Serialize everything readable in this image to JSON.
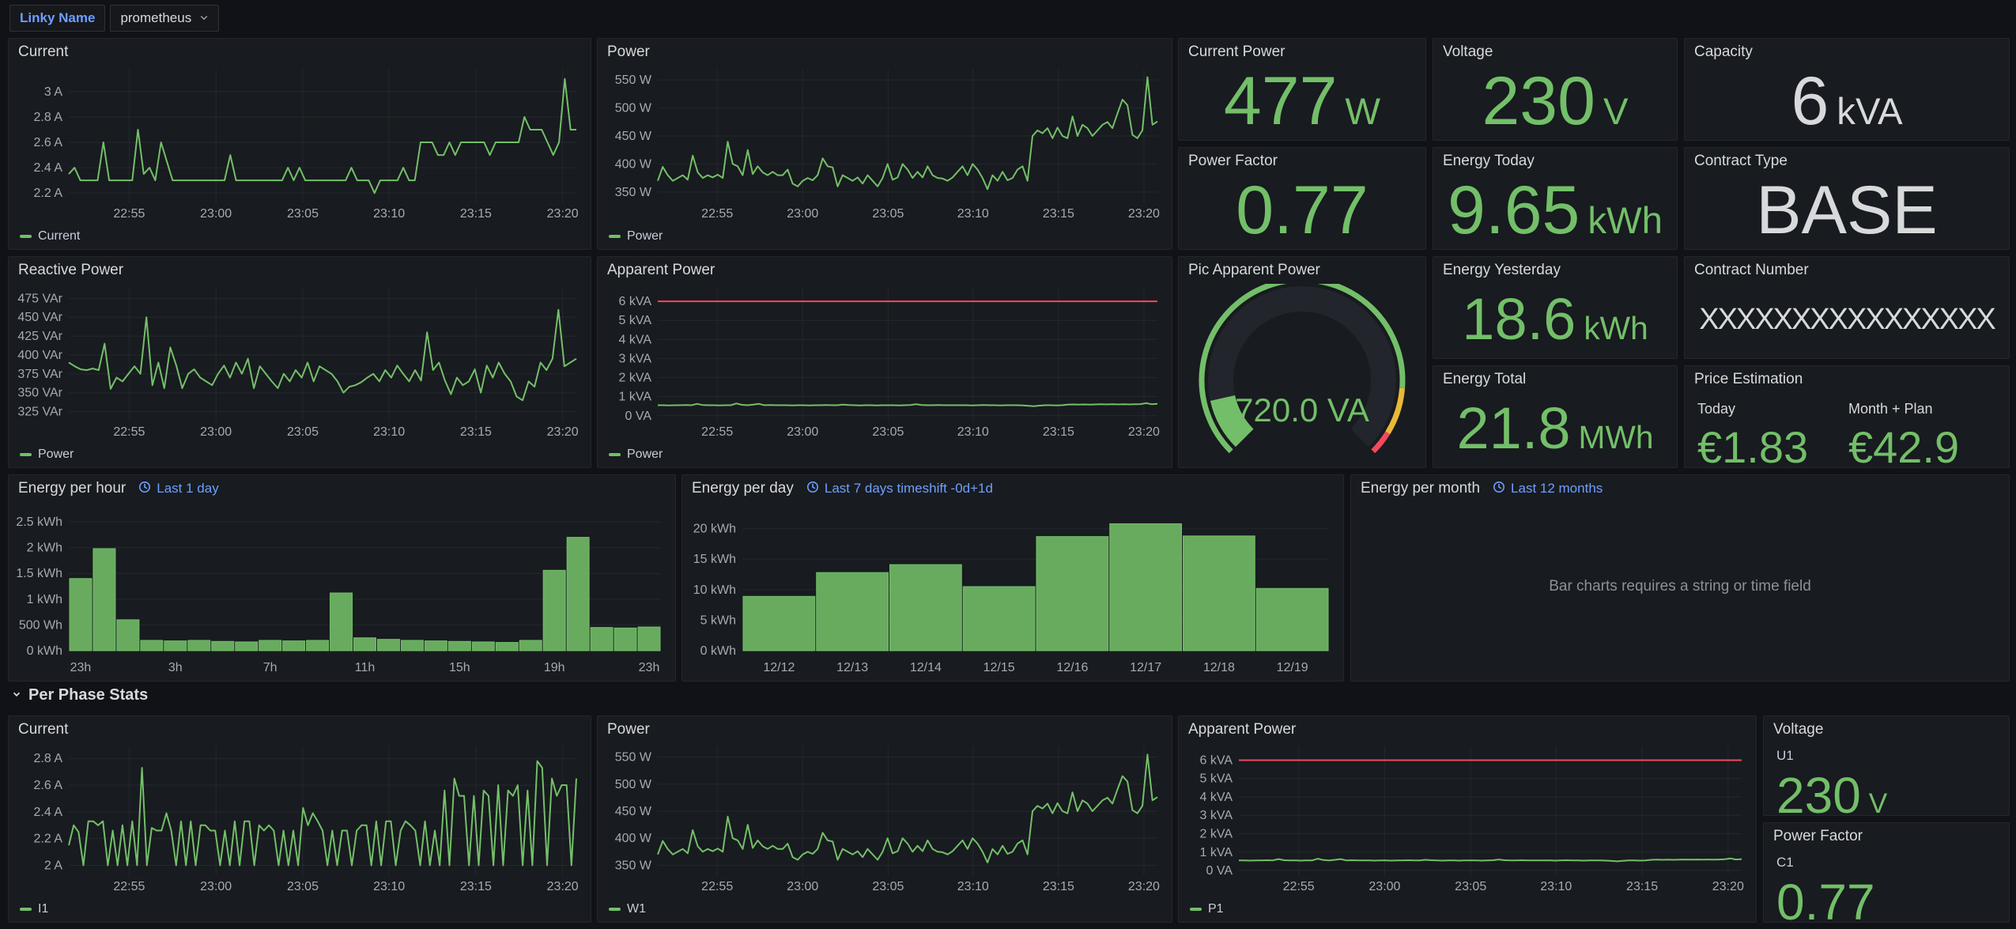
{
  "header": {
    "variable_label": "Linky Name",
    "variable_value": "prometheus"
  },
  "section": {
    "per_phase_title": "Per Phase Stats"
  },
  "messages": {
    "bar_chart_error": "Bar charts requires a string or time field"
  },
  "colors": {
    "green": "#73BF69",
    "red": "#F2495C",
    "yellow": "#EAB839",
    "link_blue": "#6E9FFF",
    "white_stat": "#D8D9DA"
  },
  "stats": {
    "current_power": {
      "title": "Current Power",
      "value": "477",
      "unit": "W"
    },
    "voltage": {
      "title": "Voltage",
      "value": "230",
      "unit": "V"
    },
    "capacity": {
      "title": "Capacity",
      "value": "6",
      "unit": "kVA"
    },
    "power_factor": {
      "title": "Power Factor",
      "value": "0.77"
    },
    "energy_today": {
      "title": "Energy Today",
      "value": "9.65",
      "unit": "kWh"
    },
    "contract_type": {
      "title": "Contract Type",
      "value": "BASE"
    },
    "energy_yesterday": {
      "title": "Energy Yesterday",
      "value": "18.6",
      "unit": "kWh"
    },
    "contract_number": {
      "title": "Contract Number",
      "value": "XXXXXXXXXXXXXXXX"
    },
    "energy_total": {
      "title": "Energy Total",
      "value": "21.8",
      "unit": "MWh"
    },
    "price": {
      "title": "Price Estimation",
      "today_label": "Today",
      "today_value": "€1.83",
      "month_label": "Month + Plan",
      "month_value": "€42.9"
    },
    "voltage_u1": {
      "title": "Voltage",
      "series": "U1",
      "value": "230",
      "unit": "V"
    },
    "power_factor_c1": {
      "title": "Power Factor",
      "series": "C1",
      "value": "0.77"
    }
  },
  "gauge": {
    "title": "Pic Apparent Power",
    "value_label": "720.0 VA",
    "fraction": 0.12,
    "thresholds": [
      {
        "color": "#73BF69",
        "upto": 0.85
      },
      {
        "color": "#EAB839",
        "upto": 0.95
      },
      {
        "color": "#F2495C",
        "upto": 1.0
      }
    ]
  },
  "charts": {
    "current_top": {
      "type": "line",
      "title": "Current",
      "legend": "Current",
      "color": "#73BF69",
      "ymin": 2.12,
      "ymax": 3.18,
      "yticks": [
        {
          "v": 2.2,
          "label": "2.2 A"
        },
        {
          "v": 2.4,
          "label": "2.4 A"
        },
        {
          "v": 2.6,
          "label": "2.6 A"
        },
        {
          "v": 2.8,
          "label": "2.8 A"
        },
        {
          "v": 3.0,
          "label": "3 A"
        }
      ],
      "xticks": [
        {
          "pos": 0.119,
          "label": "22:55"
        },
        {
          "pos": 0.29,
          "label": "23:00"
        },
        {
          "pos": 0.461,
          "label": "23:05"
        },
        {
          "pos": 0.631,
          "label": "23:10"
        },
        {
          "pos": 0.802,
          "label": "23:15"
        },
        {
          "pos": 0.973,
          "label": "23:20"
        }
      ],
      "values": [
        2.35,
        2.4,
        2.3,
        2.3,
        2.3,
        2.3,
        2.6,
        2.3,
        2.3,
        2.3,
        2.3,
        2.3,
        2.7,
        2.35,
        2.4,
        2.3,
        2.6,
        2.45,
        2.3,
        2.3,
        2.3,
        2.3,
        2.3,
        2.3,
        2.3,
        2.3,
        2.3,
        2.3,
        2.5,
        2.3,
        2.3,
        2.3,
        2.3,
        2.3,
        2.3,
        2.3,
        2.3,
        2.3,
        2.4,
        2.3,
        2.4,
        2.3,
        2.3,
        2.3,
        2.3,
        2.3,
        2.3,
        2.3,
        2.3,
        2.4,
        2.3,
        2.3,
        2.3,
        2.2,
        2.3,
        2.3,
        2.3,
        2.3,
        2.4,
        2.3,
        2.3,
        2.6,
        2.6,
        2.6,
        2.5,
        2.5,
        2.6,
        2.5,
        2.6,
        2.6,
        2.6,
        2.6,
        2.6,
        2.5,
        2.6,
        2.6,
        2.6,
        2.6,
        2.6,
        2.8,
        2.7,
        2.7,
        2.7,
        2.6,
        2.5,
        2.6,
        3.1,
        2.7,
        2.7
      ]
    },
    "power_top": {
      "type": "line",
      "title": "Power",
      "legend": "Power",
      "color": "#73BF69",
      "ymin": 330,
      "ymax": 570,
      "yticks": [
        {
          "v": 350,
          "label": "350 W"
        },
        {
          "v": 400,
          "label": "400 W"
        },
        {
          "v": 450,
          "label": "450 W"
        },
        {
          "v": 500,
          "label": "500 W"
        },
        {
          "v": 550,
          "label": "550 W"
        }
      ],
      "xticks": [
        {
          "pos": 0.119,
          "label": "22:55"
        },
        {
          "pos": 0.29,
          "label": "23:00"
        },
        {
          "pos": 0.461,
          "label": "23:05"
        },
        {
          "pos": 0.631,
          "label": "23:10"
        },
        {
          "pos": 0.802,
          "label": "23:15"
        },
        {
          "pos": 0.973,
          "label": "23:20"
        }
      ],
      "values": [
        370,
        395,
        380,
        370,
        375,
        380,
        372,
        415,
        385,
        375,
        380,
        376,
        381,
        375,
        440,
        400,
        396,
        380,
        425,
        382,
        396,
        385,
        380,
        386,
        380,
        380,
        390,
        365,
        360,
        370,
        375,
        371,
        380,
        410,
        396,
        394,
        360,
        380,
        375,
        370,
        376,
        365,
        380,
        370,
        360,
        375,
        400,
        372,
        376,
        400,
        390,
        375,
        386,
        376,
        396,
        380,
        375,
        374,
        370,
        376,
        386,
        396,
        380,
        400,
        390,
        375,
        355,
        380,
        370,
        386,
        371,
        375,
        390,
        396,
        370,
        450,
        460,
        455,
        464,
        446,
        465,
        450,
        446,
        485,
        450,
        470,
        464,
        450,
        460,
        470,
        475,
        464,
        490,
        515,
        505,
        452,
        446,
        460,
        555,
        470,
        476
      ]
    },
    "reactive": {
      "type": "line",
      "title": "Reactive Power",
      "legend": "Power",
      "color": "#73BF69",
      "ymin": 312,
      "ymax": 490,
      "yticks": [
        {
          "v": 325,
          "label": "325 VAr"
        },
        {
          "v": 350,
          "label": "350 VAr"
        },
        {
          "v": 375,
          "label": "375 VAr"
        },
        {
          "v": 400,
          "label": "400 VAr"
        },
        {
          "v": 425,
          "label": "425 VAr"
        },
        {
          "v": 450,
          "label": "450 VAr"
        },
        {
          "v": 475,
          "label": "475 VAr"
        }
      ],
      "xticks": [
        {
          "pos": 0.119,
          "label": "22:55"
        },
        {
          "pos": 0.29,
          "label": "23:00"
        },
        {
          "pos": 0.461,
          "label": "23:05"
        },
        {
          "pos": 0.631,
          "label": "23:10"
        },
        {
          "pos": 0.802,
          "label": "23:15"
        },
        {
          "pos": 0.973,
          "label": "23:20"
        }
      ],
      "values": [
        390,
        385,
        381,
        380,
        382,
        380,
        415,
        355,
        370,
        365,
        375,
        385,
        375,
        450,
        360,
        390,
        356,
        410,
        386,
        356,
        375,
        381,
        370,
        365,
        360,
        375,
        386,
        370,
        390,
        375,
        395,
        356,
        385,
        375,
        365,
        356,
        375,
        365,
        380,
        370,
        390,
        365,
        385,
        380,
        375,
        365,
        350,
        358,
        360,
        364,
        370,
        375,
        365,
        380,
        370,
        386,
        375,
        365,
        380,
        366,
        430,
        380,
        390,
        366,
        348,
        370,
        360,
        365,
        381,
        350,
        386,
        370,
        390,
        375,
        365,
        345,
        340,
        365,
        358,
        390,
        380,
        395,
        460,
        385,
        390,
        395
      ]
    },
    "apparent_top": {
      "type": "line",
      "title": "Apparent Power",
      "legend": "Power",
      "color": "#73BF69",
      "threshold": 6,
      "ymin": -0.3,
      "ymax": 6.75,
      "yticks": [
        {
          "v": 0,
          "label": "0 VA"
        },
        {
          "v": 1,
          "label": "1 kVA"
        },
        {
          "v": 2,
          "label": "2 kVA"
        },
        {
          "v": 3,
          "label": "3 kVA"
        },
        {
          "v": 4,
          "label": "4 kVA"
        },
        {
          "v": 5,
          "label": "5 kVA"
        },
        {
          "v": 6,
          "label": "6 kVA"
        }
      ],
      "xticks": [
        {
          "pos": 0.119,
          "label": "22:55"
        },
        {
          "pos": 0.29,
          "label": "23:00"
        },
        {
          "pos": 0.461,
          "label": "23:05"
        },
        {
          "pos": 0.631,
          "label": "23:10"
        },
        {
          "pos": 0.802,
          "label": "23:15"
        },
        {
          "pos": 0.973,
          "label": "23:20"
        }
      ],
      "values": [
        0.55,
        0.55,
        0.54,
        0.55,
        0.55,
        0.56,
        0.55,
        0.62,
        0.56,
        0.55,
        0.55,
        0.54,
        0.55,
        0.55,
        0.64,
        0.57,
        0.55,
        0.58,
        0.62,
        0.55,
        0.56,
        0.55,
        0.55,
        0.55,
        0.54,
        0.55,
        0.55,
        0.54,
        0.55,
        0.55,
        0.56,
        0.55,
        0.55,
        0.58,
        0.56,
        0.55,
        0.54,
        0.55,
        0.55,
        0.54,
        0.55,
        0.55,
        0.55,
        0.54,
        0.55,
        0.56,
        0.6,
        0.56,
        0.55,
        0.55,
        0.56,
        0.55,
        0.55,
        0.55,
        0.55,
        0.55,
        0.54,
        0.55,
        0.56,
        0.55,
        0.55,
        0.54,
        0.55,
        0.55,
        0.55,
        0.54,
        0.52,
        0.5,
        0.53,
        0.55,
        0.55,
        0.54,
        0.55,
        0.58,
        0.59,
        0.58,
        0.59,
        0.58,
        0.59,
        0.6,
        0.59,
        0.6,
        0.59,
        0.6,
        0.59,
        0.6,
        0.61,
        0.66,
        0.6,
        0.62
      ]
    },
    "energy_hour": {
      "type": "bars",
      "title": "Energy per hour",
      "time_range": "Last 1 day",
      "color": "#73BF69",
      "xgrid": false,
      "ymin": 0,
      "ymax": 2.7,
      "padb": 34,
      "yticks": [
        {
          "v": 0,
          "label": "0 kWh"
        },
        {
          "v": 0.5,
          "label": "500 Wh"
        },
        {
          "v": 1,
          "label": "1 kWh"
        },
        {
          "v": 1.5,
          "label": "1.5 kWh"
        },
        {
          "v": 2,
          "label": "2 kWh"
        },
        {
          "v": 2.5,
          "label": "2.5 kWh"
        }
      ],
      "xticks": [
        {
          "pos": 0.02,
          "label": "23h"
        },
        {
          "pos": 0.18,
          "label": "3h"
        },
        {
          "pos": 0.34,
          "label": "7h"
        },
        {
          "pos": 0.5,
          "label": "11h"
        },
        {
          "pos": 0.66,
          "label": "15h"
        },
        {
          "pos": 0.82,
          "label": "19h"
        },
        {
          "pos": 0.98,
          "label": "23h"
        }
      ],
      "values": [
        1.4,
        1.98,
        0.6,
        0.2,
        0.19,
        0.2,
        0.18,
        0.17,
        0.2,
        0.19,
        0.2,
        1.12,
        0.25,
        0.22,
        0.2,
        0.19,
        0.18,
        0.17,
        0.16,
        0.2,
        1.56,
        2.2,
        0.45,
        0.44,
        0.46
      ]
    },
    "energy_day": {
      "type": "bars",
      "title": "Energy per day",
      "time_range": "Last 7 days timeshift -0d+1d",
      "color": "#73BF69",
      "xgrid": false,
      "ymin": 0,
      "ymax": 22.8,
      "padb": 34,
      "yticks": [
        {
          "v": 0,
          "label": "0 kWh"
        },
        {
          "v": 5,
          "label": "5 kWh"
        },
        {
          "v": 10,
          "label": "10 kWh"
        },
        {
          "v": 15,
          "label": "15 kWh"
        },
        {
          "v": 20,
          "label": "20 kWh"
        }
      ],
      "xticks": [
        {
          "pos": 0.0625,
          "label": "12/12"
        },
        {
          "pos": 0.1875,
          "label": "12/13"
        },
        {
          "pos": 0.3125,
          "label": "12/14"
        },
        {
          "pos": 0.4375,
          "label": "12/15"
        },
        {
          "pos": 0.5625,
          "label": "12/16"
        },
        {
          "pos": 0.6875,
          "label": "12/17"
        },
        {
          "pos": 0.8125,
          "label": "12/18"
        },
        {
          "pos": 0.9375,
          "label": "12/19"
        }
      ],
      "values": [
        8.9,
        12.8,
        14.1,
        10.5,
        18.7,
        20.8,
        18.8,
        10.2
      ]
    },
    "energy_month": {
      "title": "Energy per month",
      "time_range": "Last 12 months"
    },
    "current_phase": {
      "type": "line",
      "title": "Current",
      "legend": "I1",
      "color": "#73BF69",
      "ymin": 1.92,
      "ymax": 2.89,
      "yticks": [
        {
          "v": 2.0,
          "label": "2 A"
        },
        {
          "v": 2.2,
          "label": "2.2 A"
        },
        {
          "v": 2.4,
          "label": "2.4 A"
        },
        {
          "v": 2.6,
          "label": "2.6 A"
        },
        {
          "v": 2.8,
          "label": "2.8 A"
        }
      ],
      "xticks": [
        {
          "pos": 0.119,
          "label": "22:55"
        },
        {
          "pos": 0.29,
          "label": "23:00"
        },
        {
          "pos": 0.461,
          "label": "23:05"
        },
        {
          "pos": 0.631,
          "label": "23:10"
        },
        {
          "pos": 0.802,
          "label": "23:15"
        },
        {
          "pos": 0.973,
          "label": "23:20"
        }
      ],
      "values": [
        2.15,
        2.3,
        2.25,
        2.0,
        2.33,
        2.33,
        2.3,
        2.33,
        2.0,
        2.26,
        2.0,
        2.3,
        2.0,
        2.33,
        2.0,
        2.73,
        2.0,
        2.28,
        2.26,
        2.26,
        2.39,
        2.26,
        2.0,
        2.33,
        2.0,
        2.33,
        2.0,
        2.3,
        2.3,
        2.26,
        2.26,
        2.0,
        2.26,
        2.0,
        2.33,
        2.0,
        2.33,
        2.33,
        2.0,
        2.3,
        2.26,
        2.3,
        2.26,
        2.0,
        2.26,
        2.0,
        2.26,
        2.0,
        2.43,
        2.3,
        2.39,
        2.33,
        2.26,
        2.0,
        2.26,
        2.0,
        2.26,
        2.26,
        2.0,
        2.26,
        2.3,
        2.3,
        2.0,
        2.33,
        2.0,
        2.33,
        2.33,
        2.0,
        2.26,
        2.33,
        2.3,
        2.26,
        2.0,
        2.33,
        2.0,
        2.26,
        2.0,
        2.56,
        2.0,
        2.65,
        2.52,
        2.52,
        2.0,
        2.52,
        2.0,
        2.56,
        2.52,
        2.0,
        2.6,
        2.0,
        2.56,
        2.52,
        2.6,
        2.0,
        2.56,
        2.0,
        2.78,
        2.73,
        2.0,
        2.65,
        2.52,
        2.6,
        2.6,
        2.0,
        2.65
      ]
    },
    "power_phase": {
      "type": "line",
      "title": "Power",
      "legend": "W1",
      "color": "#73BF69",
      "values_ref": "power_top",
      "ymin": 330,
      "ymax": 570,
      "yticks": [
        {
          "v": 350,
          "label": "350 W"
        },
        {
          "v": 400,
          "label": "400 W"
        },
        {
          "v": 450,
          "label": "450 W"
        },
        {
          "v": 500,
          "label": "500 W"
        },
        {
          "v": 550,
          "label": "550 W"
        }
      ],
      "xticks": [
        {
          "pos": 0.119,
          "label": "22:55"
        },
        {
          "pos": 0.29,
          "label": "23:00"
        },
        {
          "pos": 0.461,
          "label": "23:05"
        },
        {
          "pos": 0.631,
          "label": "23:10"
        },
        {
          "pos": 0.802,
          "label": "23:15"
        },
        {
          "pos": 0.973,
          "label": "23:20"
        }
      ]
    },
    "apparent_phase": {
      "type": "line",
      "title": "Apparent Power",
      "legend": "P1",
      "color": "#73BF69",
      "threshold": 6,
      "values_ref": "apparent_top",
      "ymin": -0.3,
      "ymax": 6.75,
      "yticks": [
        {
          "v": 0,
          "label": "0 VA"
        },
        {
          "v": 1,
          "label": "1 kVA"
        },
        {
          "v": 2,
          "label": "2 kVA"
        },
        {
          "v": 3,
          "label": "3 kVA"
        },
        {
          "v": 4,
          "label": "4 kVA"
        },
        {
          "v": 5,
          "label": "5 kVA"
        },
        {
          "v": 6,
          "label": "6 kVA"
        }
      ],
      "xticks": [
        {
          "pos": 0.119,
          "label": "22:55"
        },
        {
          "pos": 0.29,
          "label": "23:00"
        },
        {
          "pos": 0.461,
          "label": "23:05"
        },
        {
          "pos": 0.631,
          "label": "23:10"
        },
        {
          "pos": 0.802,
          "label": "23:15"
        },
        {
          "pos": 0.973,
          "label": "23:20"
        }
      ]
    }
  }
}
